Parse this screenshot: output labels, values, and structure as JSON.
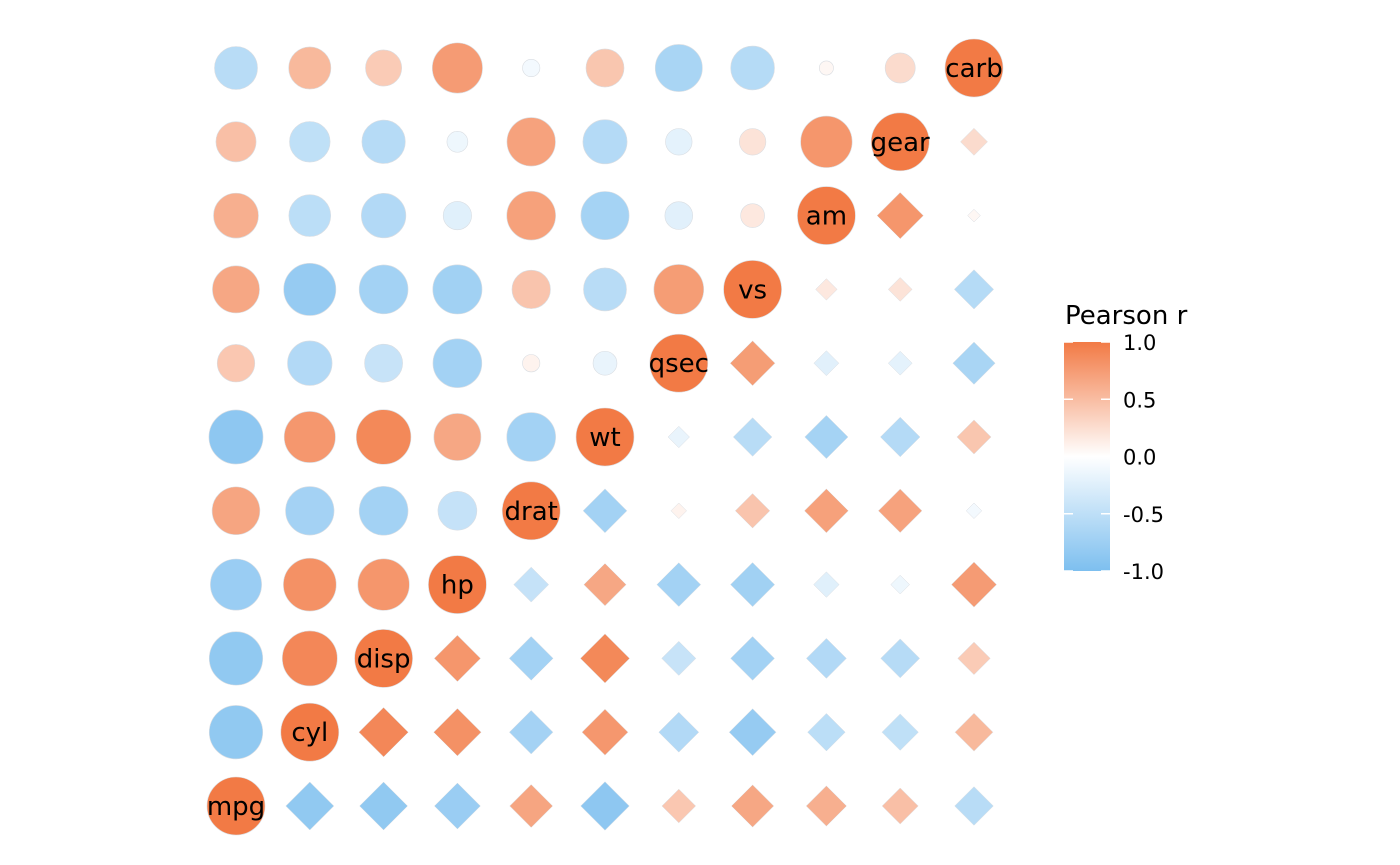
{
  "chart_data": {
    "type": "heatmap",
    "variables": [
      "mpg",
      "cyl",
      "disp",
      "hp",
      "drat",
      "wt",
      "qsec",
      "vs",
      "am",
      "gear",
      "carb"
    ],
    "matrix": [
      [
        1.0,
        -0.85,
        -0.85,
        -0.78,
        0.68,
        -0.87,
        0.42,
        0.66,
        0.6,
        0.48,
        -0.55
      ],
      [
        -0.85,
        1.0,
        0.9,
        0.83,
        -0.7,
        0.78,
        -0.59,
        -0.81,
        -0.52,
        -0.49,
        0.53
      ],
      [
        -0.85,
        0.9,
        1.0,
        0.79,
        -0.71,
        0.89,
        -0.43,
        -0.71,
        -0.59,
        -0.56,
        0.39
      ],
      [
        -0.78,
        0.83,
        0.79,
        1.0,
        -0.45,
        0.66,
        -0.71,
        -0.72,
        -0.24,
        -0.13,
        0.75
      ],
      [
        0.68,
        -0.7,
        -0.71,
        -0.45,
        1.0,
        -0.71,
        0.09,
        0.44,
        0.71,
        0.7,
        -0.09
      ],
      [
        -0.87,
        0.78,
        0.89,
        0.66,
        -0.71,
        1.0,
        -0.17,
        -0.55,
        -0.69,
        -0.58,
        0.43
      ],
      [
        0.42,
        -0.59,
        -0.43,
        -0.71,
        0.09,
        -0.17,
        1.0,
        0.74,
        -0.23,
        -0.21,
        -0.66
      ],
      [
        0.66,
        -0.81,
        -0.71,
        -0.72,
        0.44,
        -0.55,
        0.74,
        1.0,
        0.17,
        0.21,
        -0.57
      ],
      [
        0.6,
        -0.52,
        -0.59,
        -0.24,
        0.71,
        -0.69,
        -0.23,
        0.17,
        1.0,
        0.79,
        0.06
      ],
      [
        0.48,
        -0.49,
        -0.56,
        -0.13,
        0.7,
        -0.58,
        -0.21,
        0.21,
        0.79,
        1.0,
        0.27
      ],
      [
        -0.55,
        0.53,
        0.39,
        0.75,
        -0.09,
        0.43,
        -0.66,
        -0.57,
        0.06,
        0.27,
        1.0
      ]
    ],
    "upper_shape": "circle",
    "lower_shape": "diamond",
    "labels_on_diagonal": true,
    "legend": {
      "title": "Pearson r",
      "position": "right",
      "range": [
        -1.0,
        1.0
      ],
      "tick_values": [
        1.0,
        0.5,
        0.0,
        -0.5,
        -1.0
      ],
      "tick_labels": [
        "1.0",
        "0.5",
        "0.0",
        "-0.5",
        "-1.0"
      ]
    },
    "colors": {
      "positive": "#F27A45",
      "zero": "#FFFFFF",
      "negative": "#7DBFEF"
    }
  }
}
